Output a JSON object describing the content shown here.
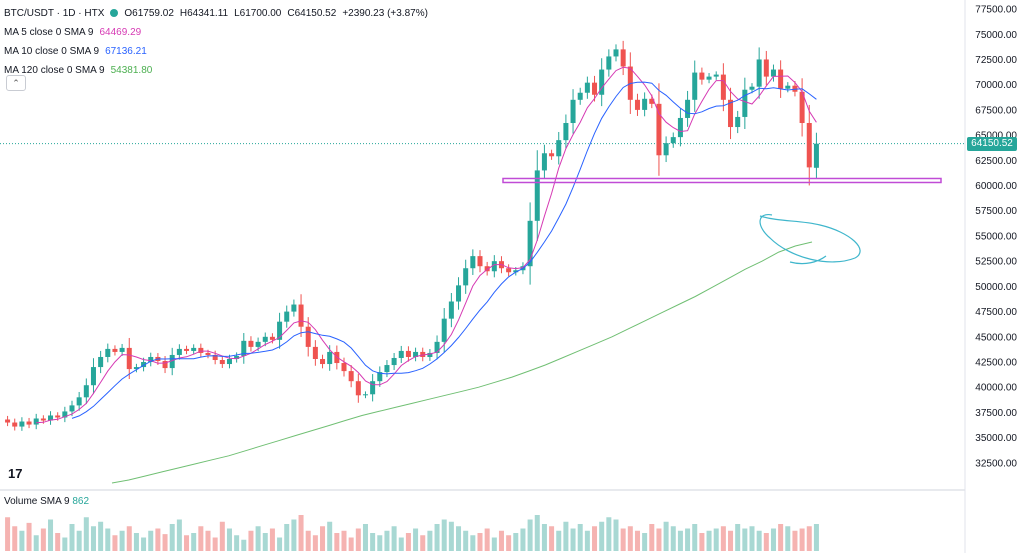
{
  "header": {
    "symbol": "BTC/USDT · 1D · HTX",
    "open": "O61759.02",
    "high": "H64341.11",
    "low": "L61700.00",
    "close": "C64150.52",
    "change": "+2390.23 (+3.87%)"
  },
  "indicators": [
    {
      "label": "MA 5 close 0 SMA 9",
      "value": "64469.29",
      "color": "#d63ab4"
    },
    {
      "label": "MA 10 close 0 SMA 9",
      "value": "67136.21",
      "color": "#2962ff"
    },
    {
      "label": "MA 120 close 0 SMA 9",
      "value": "54381.80",
      "color": "#4caf50"
    }
  ],
  "volume_legend": {
    "label": "Volume SMA 9",
    "value": "862"
  },
  "last_price": "64150.52",
  "colors": {
    "up": "#26a69a",
    "down": "#ef5350",
    "support": "#c04bd6",
    "annotation": "#3fb6cc"
  },
  "chart_data": {
    "type": "candlestick",
    "y_ticks": [
      "77500.00",
      "75000.00",
      "72500.00",
      "70000.00",
      "67500.00",
      "65000.00",
      "62500.00",
      "60000.00",
      "57500.00",
      "55000.00",
      "52500.00",
      "50000.00",
      "47500.00",
      "45000.00",
      "42500.00",
      "40000.00",
      "37500.00",
      "35000.00",
      "32500.00"
    ],
    "ylim": [
      31000,
      78000
    ],
    "support_level": 60500,
    "closes": [
      36500,
      36100,
      36600,
      36300,
      36900,
      36700,
      37200,
      37000,
      37600,
      38200,
      39000,
      40200,
      42000,
      43000,
      43800,
      43500,
      43900,
      41800,
      42000,
      42500,
      43000,
      42600,
      41900,
      43200,
      43800,
      43600,
      43900,
      43400,
      43200,
      42700,
      42300,
      42800,
      43100,
      44600,
      44000,
      44500,
      45000,
      44700,
      46500,
      47500,
      48200,
      46000,
      44000,
      42800,
      42300,
      43500,
      42400,
      41600,
      40600,
      39200,
      39300,
      40600,
      41500,
      42200,
      42900,
      43600,
      43000,
      43500,
      43000,
      43400,
      44500,
      46800,
      48500,
      50100,
      51800,
      53000,
      52000,
      51500,
      52500,
      51800,
      51400,
      51600,
      52000,
      56500,
      61500,
      63200,
      62900,
      64500,
      66200,
      68500,
      69200,
      70200,
      69000,
      71500,
      72800,
      73500,
      71800,
      68500,
      67500,
      68600,
      68100,
      63000,
      64200,
      64800,
      66700,
      68500,
      71200,
      70500,
      70800,
      71000,
      68500,
      65800,
      66800,
      69500,
      69800,
      72500,
      70800,
      71500,
      69600,
      69900,
      69300,
      66200,
      61800,
      64150
    ],
    "opens": [
      36800,
      36500,
      36100,
      36600,
      36300,
      36900,
      36700,
      37200,
      37000,
      37600,
      38200,
      39000,
      40200,
      42000,
      43000,
      43800,
      43500,
      43900,
      41800,
      42000,
      42500,
      43000,
      42600,
      41900,
      43200,
      43800,
      43600,
      43900,
      43400,
      43200,
      42700,
      42300,
      42800,
      43100,
      44600,
      44000,
      44500,
      45000,
      44700,
      46500,
      47500,
      48200,
      46000,
      44000,
      42800,
      42300,
      43500,
      42400,
      41600,
      40600,
      39200,
      39300,
      40600,
      41500,
      42200,
      42900,
      43600,
      43000,
      43500,
      43000,
      43400,
      44500,
      46800,
      48500,
      50100,
      51800,
      53000,
      52000,
      51500,
      52500,
      51800,
      51400,
      51600,
      52000,
      56500,
      61500,
      63200,
      62900,
      64500,
      66200,
      68500,
      69200,
      70200,
      69000,
      71500,
      72800,
      73500,
      71800,
      68500,
      67500,
      68600,
      68100,
      63000,
      64200,
      64800,
      66700,
      68500,
      71200,
      70500,
      70800,
      71000,
      68500,
      65800,
      66800,
      69500,
      69800,
      72500,
      70800,
      71500,
      69600,
      69900,
      69300,
      66200,
      61759
    ],
    "ma120": [
      30500,
      30800,
      31200,
      31600,
      32000,
      32400,
      32800,
      33200,
      33700,
      34200,
      34700,
      35200,
      35700,
      36200,
      36700,
      37200,
      37600,
      38000,
      38400,
      38800,
      39200,
      39600,
      40000,
      40500,
      41000,
      41600,
      42200,
      42900,
      43600,
      44300,
      45000,
      45800,
      46600,
      47400,
      48200,
      49000,
      49900,
      50800,
      51700,
      52500,
      53400,
      54000,
      54400
    ],
    "volumes": [
      30,
      22,
      18,
      25,
      14,
      20,
      28,
      16,
      12,
      24,
      18,
      30,
      22,
      26,
      20,
      14,
      18,
      22,
      16,
      12,
      18,
      20,
      15,
      24,
      28,
      14,
      16,
      22,
      18,
      12,
      26,
      20,
      14,
      10,
      18,
      22,
      16,
      20,
      12,
      24,
      28,
      32,
      18,
      14,
      22,
      26,
      16,
      18,
      12,
      20,
      24,
      16,
      14,
      18,
      22,
      12,
      16,
      20,
      14,
      18,
      24,
      28,
      26,
      22,
      18,
      14,
      16,
      20,
      12,
      18,
      14,
      16,
      20,
      28,
      32,
      24,
      22,
      18,
      26,
      20,
      24,
      18,
      22,
      26,
      30,
      28,
      20,
      22,
      18,
      16,
      24,
      20,
      26,
      22,
      18,
      20,
      24,
      16,
      18,
      20,
      22,
      18,
      24,
      20,
      22,
      18,
      16,
      20,
      24,
      22,
      18,
      20,
      22,
      24
    ]
  }
}
